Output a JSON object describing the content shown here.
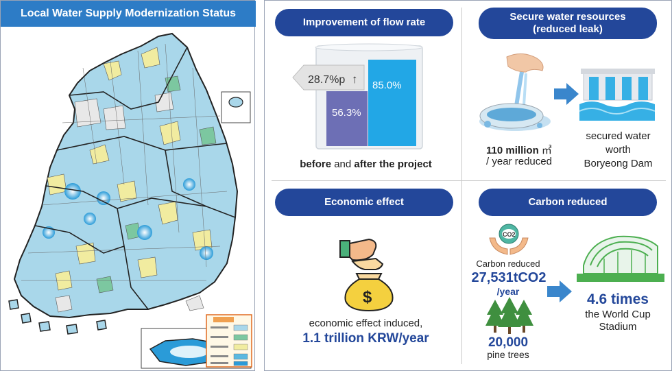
{
  "map_panel": {
    "title": "Local Water Supply Modernization Status"
  },
  "flow_rate": {
    "heading": "Improvement of flow rate",
    "increase_label": "28.7%p",
    "increase_arrow": "↑",
    "before_value": "56.3%",
    "after_value": "85.0%",
    "caption_before": "before",
    "caption_and": " and ",
    "caption_after": "after the project"
  },
  "water_resources": {
    "heading_line1": "Secure water resources",
    "heading_line2": "(reduced leak)",
    "amount": "110 million",
    "unit": "㎥",
    "period": "/ year reduced",
    "result_line1": "secured water",
    "result_line2": "worth",
    "result_line3": "Boryeong Dam"
  },
  "economic": {
    "heading": "Economic effect",
    "caption": "economic effect induced,",
    "value": "1.1 trillion KRW/year",
    "dollar_symbol": "$"
  },
  "carbon": {
    "heading": "Carbon reduced",
    "co2_icon_label": "CO2",
    "reduced_label": "Carbon reduced",
    "value": "27,531tCO2",
    "period": "/year",
    "trees_value": "20,000",
    "trees_label": "pine trees",
    "stadium_value": "4.6 times",
    "stadium_line1": "the World Cup",
    "stadium_line2": "Stadium"
  },
  "colors": {
    "title_bar": "#2d7cc6",
    "pill": "#23479a",
    "before_bar": "#6d6fb5",
    "after_bar": "#22a7e6"
  }
}
